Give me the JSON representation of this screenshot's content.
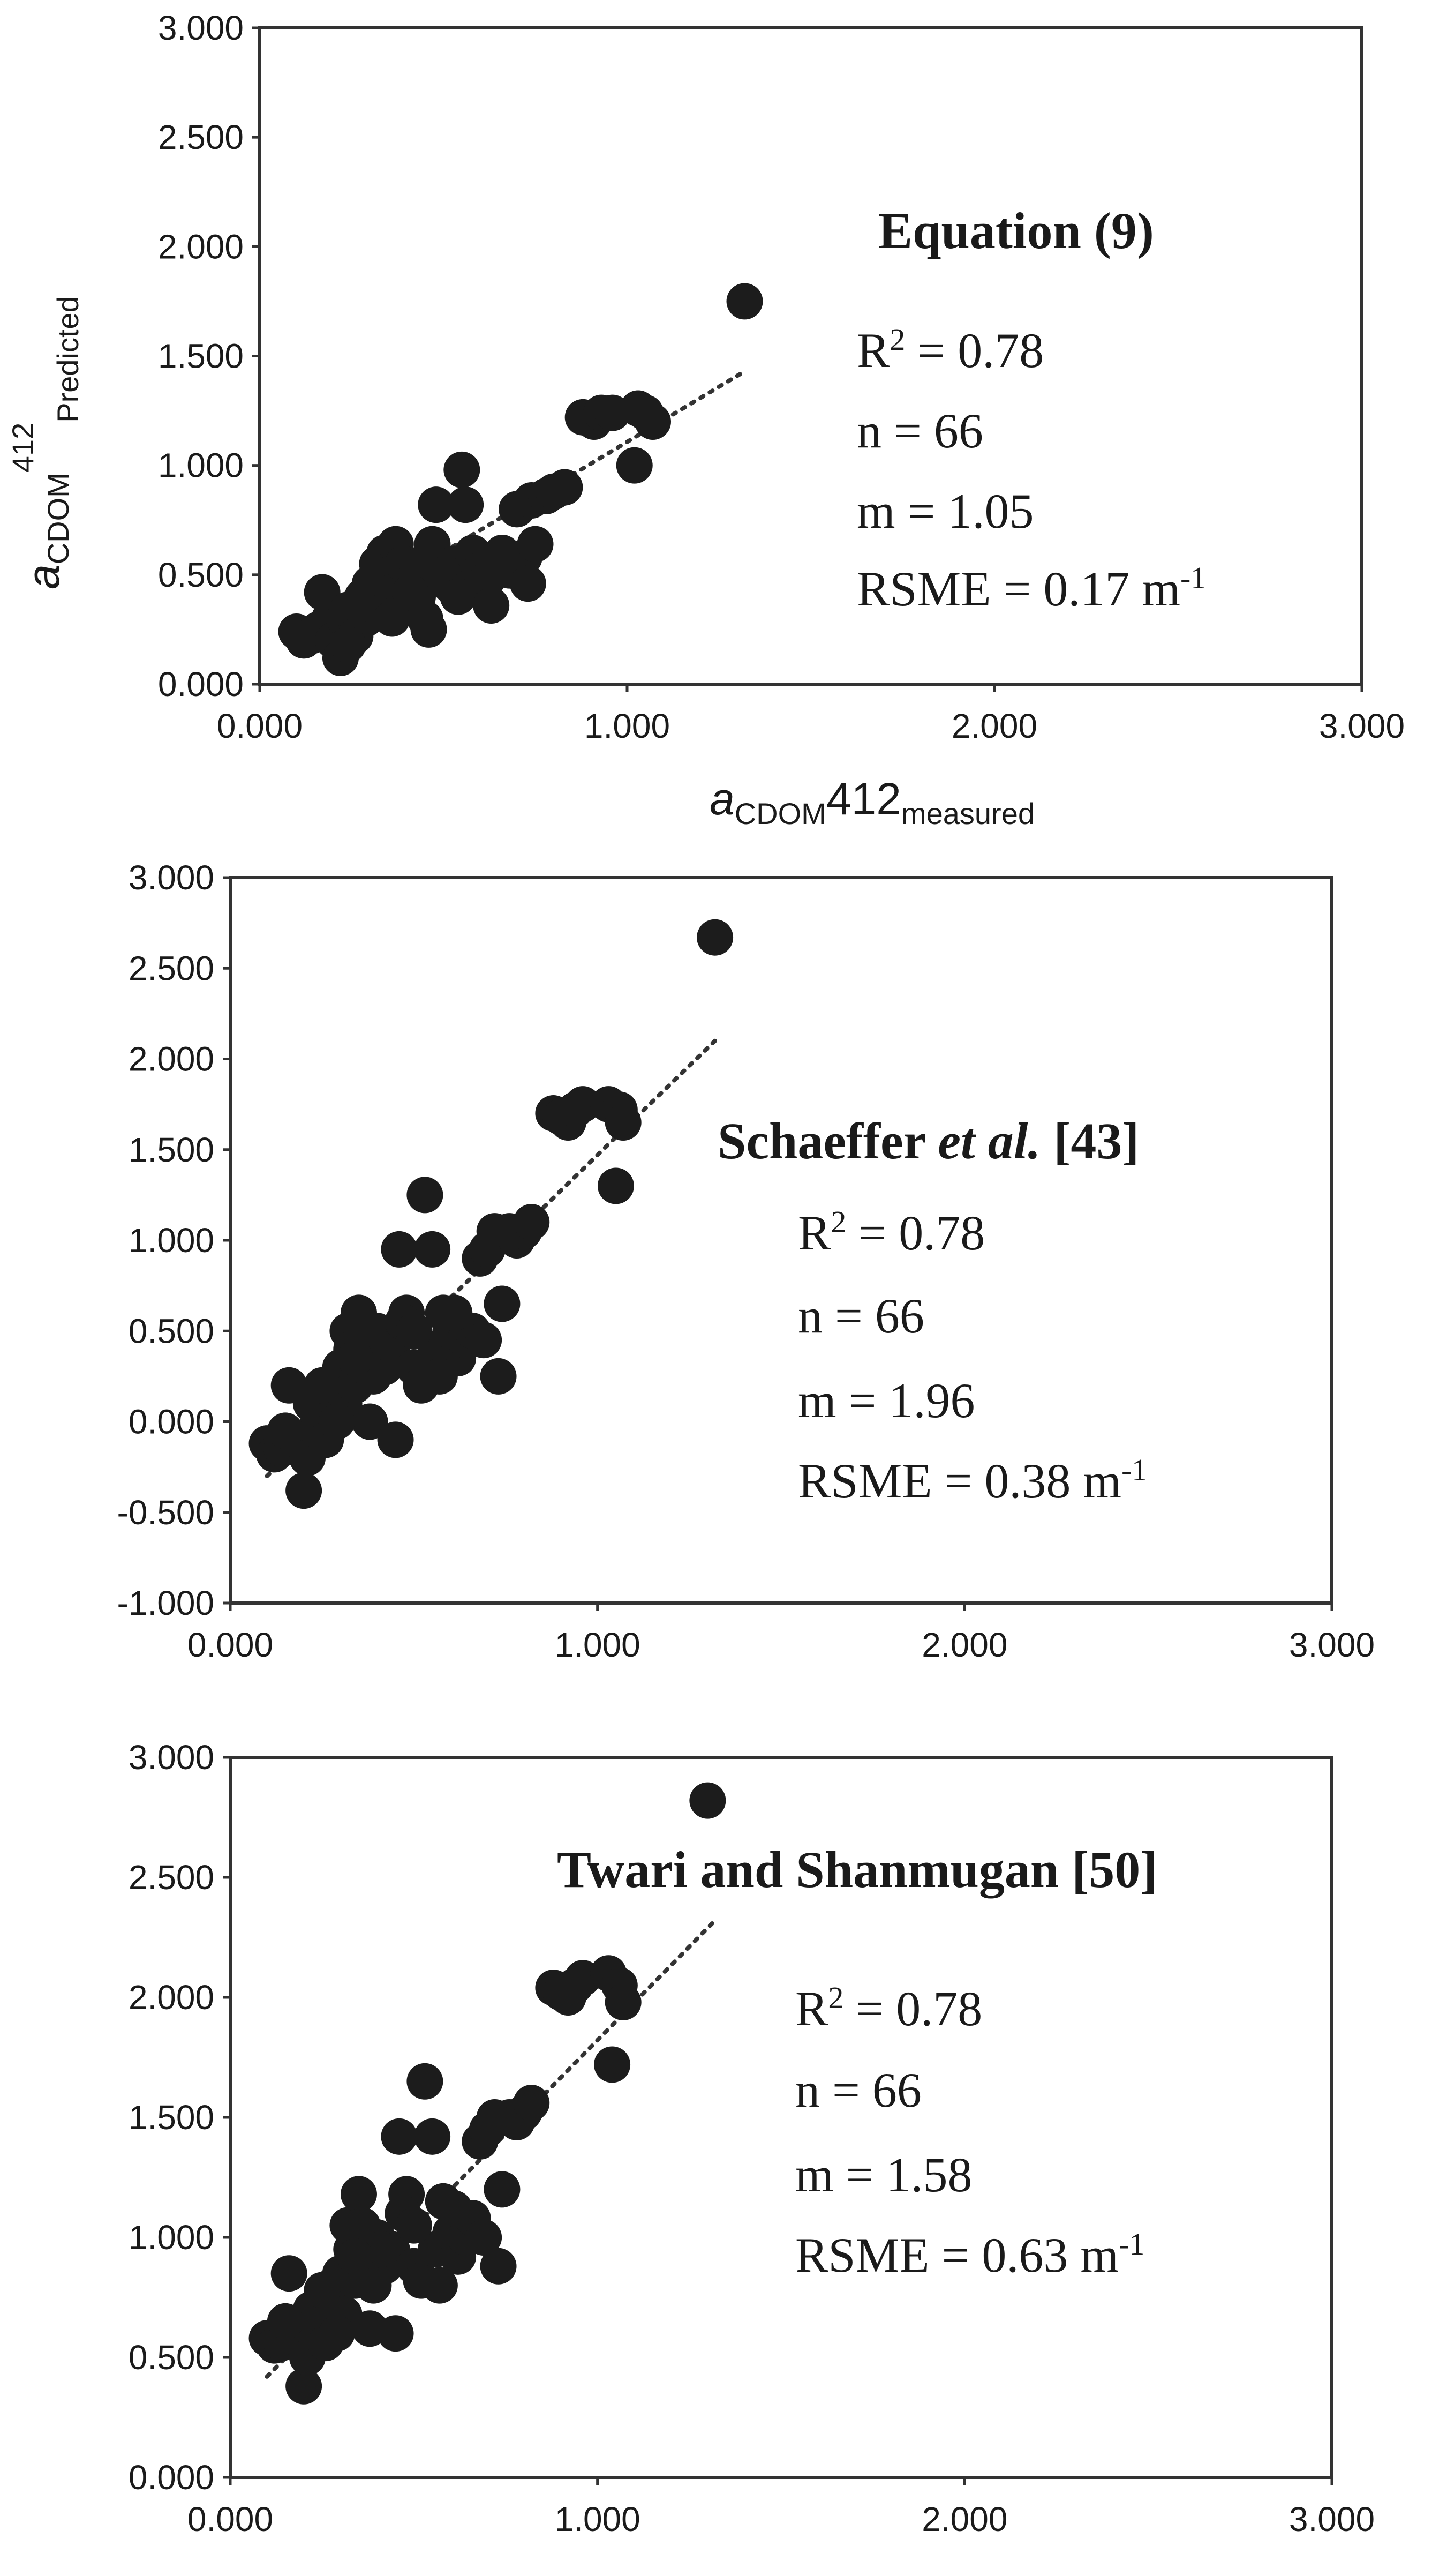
{
  "chart_data": [
    {
      "type": "scatter",
      "title": "Equation (9)",
      "xlabel": {
        "italic": "a",
        "sub1": "CDOM",
        "main": "412",
        "sub2": "measured"
      },
      "ylabel": {
        "italic": "a",
        "sub1": "CDOM",
        "sup": "412",
        "sub2": "Predicted"
      },
      "xlim": [
        0,
        3
      ],
      "ylim": [
        0,
        3
      ],
      "xticks": [
        "0.000",
        "1.000",
        "2.000",
        "3.000"
      ],
      "yticks": [
        "0.000",
        "0.500",
        "1.000",
        "1.500",
        "2.000",
        "2.500",
        "3.000"
      ],
      "trendline": {
        "x": [
          0.1,
          1.32
        ],
        "y": [
          0.2,
          1.43
        ],
        "style": "dotted"
      },
      "annotations": {
        "r2_prefix": "R",
        "r2_sup": "2",
        "r2_value": " = 0.78",
        "n": "n = 66",
        "m": "m = 1.05",
        "rsme": "RSME = 0.17 m",
        "rsme_sup": "-1"
      },
      "points": [
        [
          0.1,
          0.24
        ],
        [
          0.12,
          0.2
        ],
        [
          0.14,
          0.22
        ],
        [
          0.16,
          0.25
        ],
        [
          0.17,
          0.42
        ],
        [
          0.19,
          0.3
        ],
        [
          0.2,
          0.2
        ],
        [
          0.22,
          0.12
        ],
        [
          0.23,
          0.3
        ],
        [
          0.24,
          0.34
        ],
        [
          0.26,
          0.22
        ],
        [
          0.27,
          0.37
        ],
        [
          0.28,
          0.4
        ],
        [
          0.29,
          0.3
        ],
        [
          0.3,
          0.46
        ],
        [
          0.31,
          0.36
        ],
        [
          0.32,
          0.55
        ],
        [
          0.33,
          0.42
        ],
        [
          0.34,
          0.6
        ],
        [
          0.35,
          0.5
        ],
        [
          0.36,
          0.38
        ],
        [
          0.37,
          0.64
        ],
        [
          0.38,
          0.45
        ],
        [
          0.39,
          0.55
        ],
        [
          0.4,
          0.35
        ],
        [
          0.42,
          0.48
        ],
        [
          0.43,
          0.4
        ],
        [
          0.44,
          0.55
        ],
        [
          0.45,
          0.3
        ],
        [
          0.46,
          0.25
        ],
        [
          0.47,
          0.64
        ],
        [
          0.48,
          0.82
        ],
        [
          0.5,
          0.5
        ],
        [
          0.52,
          0.45
        ],
        [
          0.53,
          0.55
        ],
        [
          0.55,
          0.98
        ],
        [
          0.56,
          0.82
        ],
        [
          0.57,
          0.44
        ],
        [
          0.58,
          0.6
        ],
        [
          0.6,
          0.52
        ],
        [
          0.62,
          0.48
        ],
        [
          0.64,
          0.56
        ],
        [
          0.66,
          0.6
        ],
        [
          0.68,
          0.52
        ],
        [
          0.7,
          0.8
        ],
        [
          0.72,
          0.58
        ],
        [
          0.73,
          0.46
        ],
        [
          0.74,
          0.84
        ],
        [
          0.75,
          0.64
        ],
        [
          0.78,
          0.86
        ],
        [
          0.8,
          0.88
        ],
        [
          0.83,
          0.9
        ],
        [
          0.88,
          1.22
        ],
        [
          0.91,
          1.2
        ],
        [
          0.93,
          1.24
        ],
        [
          0.96,
          1.24
        ],
        [
          1.02,
          1.0
        ],
        [
          1.03,
          1.26
        ],
        [
          1.05,
          1.24
        ],
        [
          1.07,
          1.2
        ],
        [
          1.32,
          1.75
        ],
        [
          0.54,
          0.4
        ],
        [
          0.24,
          0.18
        ],
        [
          0.36,
          0.3
        ],
        [
          0.41,
          0.42
        ],
        [
          0.63,
          0.36
        ]
      ]
    },
    {
      "type": "scatter",
      "title_pre": "Schaeffer ",
      "title_it": "et al.",
      "title_post": " [43]",
      "xlim": [
        0,
        3
      ],
      "ylim": [
        -1,
        3
      ],
      "xticks": [
        "0.000",
        "1.000",
        "2.000",
        "3.000"
      ],
      "yticks": [
        "-1.000",
        "-0.500",
        "0.000",
        "0.500",
        "1.000",
        "1.500",
        "2.000",
        "2.500",
        "3.000"
      ],
      "trendline": {
        "x": [
          0.1,
          1.32
        ],
        "y": [
          -0.3,
          2.1
        ],
        "style": "dotted"
      },
      "annotations": {
        "r2_prefix": "R",
        "r2_sup": "2",
        "r2_value": " = 0.78",
        "n": "n = 66",
        "m": "m = 1.96",
        "rsme": "RSME  = 0.38 m",
        "rsme_sup": "-1"
      },
      "points": [
        [
          0.1,
          -0.12
        ],
        [
          0.12,
          -0.18
        ],
        [
          0.14,
          -0.15
        ],
        [
          0.16,
          0.2
        ],
        [
          0.18,
          -0.1
        ],
        [
          0.2,
          -0.38
        ],
        [
          0.21,
          -0.2
        ],
        [
          0.22,
          0.1
        ],
        [
          0.24,
          0.0
        ],
        [
          0.26,
          -0.1
        ],
        [
          0.28,
          0.2
        ],
        [
          0.3,
          0.3
        ],
        [
          0.31,
          0.1
        ],
        [
          0.32,
          0.5
        ],
        [
          0.33,
          0.4
        ],
        [
          0.34,
          0.2
        ],
        [
          0.35,
          0.6
        ],
        [
          0.36,
          0.45
        ],
        [
          0.37,
          0.3
        ],
        [
          0.38,
          0.0
        ],
        [
          0.4,
          0.5
        ],
        [
          0.42,
          0.3
        ],
        [
          0.44,
          0.4
        ],
        [
          0.45,
          -0.1
        ],
        [
          0.46,
          0.95
        ],
        [
          0.48,
          0.6
        ],
        [
          0.5,
          0.3
        ],
        [
          0.52,
          0.2
        ],
        [
          0.53,
          1.25
        ],
        [
          0.55,
          0.95
        ],
        [
          0.56,
          0.4
        ],
        [
          0.58,
          0.6
        ],
        [
          0.6,
          0.5
        ],
        [
          0.62,
          0.35
        ],
        [
          0.64,
          0.45
        ],
        [
          0.66,
          0.5
        ],
        [
          0.68,
          0.9
        ],
        [
          0.7,
          0.95
        ],
        [
          0.72,
          1.05
        ],
        [
          0.73,
          0.25
        ],
        [
          0.74,
          0.65
        ],
        [
          0.76,
          1.05
        ],
        [
          0.78,
          1.0
        ],
        [
          0.8,
          1.05
        ],
        [
          0.82,
          1.1
        ],
        [
          0.88,
          1.7
        ],
        [
          0.9,
          1.68
        ],
        [
          0.92,
          1.65
        ],
        [
          0.94,
          1.72
        ],
        [
          0.96,
          1.75
        ],
        [
          1.03,
          1.75
        ],
        [
          1.05,
          1.3
        ],
        [
          1.06,
          1.72
        ],
        [
          1.07,
          1.65
        ],
        [
          1.32,
          2.67
        ],
        [
          0.29,
          0.0
        ],
        [
          0.41,
          0.35
        ],
        [
          0.47,
          0.55
        ],
        [
          0.61,
          0.6
        ],
        [
          0.69,
          0.45
        ],
        [
          0.25,
          0.2
        ],
        [
          0.39,
          0.25
        ],
        [
          0.57,
          0.25
        ],
        [
          0.34,
          0.35
        ],
        [
          0.5,
          0.5
        ],
        [
          0.15,
          -0.05
        ]
      ]
    },
    {
      "type": "scatter",
      "title": "Twari and Shanmugan [50]",
      "xlim": [
        0,
        3
      ],
      "ylim": [
        0,
        3
      ],
      "xticks": [
        "0.000",
        "1.000",
        "2.000",
        "3.000"
      ],
      "yticks": [
        "0.000",
        "0.500",
        "1.000",
        "1.500",
        "2.000",
        "2.500",
        "3.000"
      ],
      "trendline": {
        "x": [
          0.1,
          1.32
        ],
        "y": [
          0.42,
          2.32
        ],
        "style": "dotted"
      },
      "annotations": {
        "r2_prefix": "R",
        "r2_sup": "2",
        "r2_value": " = 0.78",
        "n": "n = 66",
        "m": "m = 1.58",
        "rsme": "RSME = 0.63 m",
        "rsme_sup": "-1"
      },
      "points": [
        [
          0.1,
          0.58
        ],
        [
          0.12,
          0.55
        ],
        [
          0.14,
          0.56
        ],
        [
          0.16,
          0.85
        ],
        [
          0.18,
          0.58
        ],
        [
          0.2,
          0.38
        ],
        [
          0.21,
          0.5
        ],
        [
          0.22,
          0.7
        ],
        [
          0.24,
          0.62
        ],
        [
          0.26,
          0.56
        ],
        [
          0.28,
          0.8
        ],
        [
          0.3,
          0.85
        ],
        [
          0.31,
          0.68
        ],
        [
          0.32,
          1.05
        ],
        [
          0.33,
          0.95
        ],
        [
          0.34,
          0.82
        ],
        [
          0.35,
          1.18
        ],
        [
          0.36,
          1.05
        ],
        [
          0.37,
          0.88
        ],
        [
          0.38,
          0.62
        ],
        [
          0.4,
          1.0
        ],
        [
          0.42,
          0.88
        ],
        [
          0.44,
          0.95
        ],
        [
          0.45,
          0.6
        ],
        [
          0.46,
          1.42
        ],
        [
          0.48,
          1.18
        ],
        [
          0.5,
          0.88
        ],
        [
          0.52,
          0.82
        ],
        [
          0.53,
          1.65
        ],
        [
          0.55,
          1.42
        ],
        [
          0.56,
          0.95
        ],
        [
          0.58,
          1.15
        ],
        [
          0.6,
          1.02
        ],
        [
          0.62,
          0.92
        ],
        [
          0.64,
          1.0
        ],
        [
          0.66,
          1.08
        ],
        [
          0.68,
          1.4
        ],
        [
          0.7,
          1.45
        ],
        [
          0.72,
          1.5
        ],
        [
          0.73,
          0.88
        ],
        [
          0.74,
          1.2
        ],
        [
          0.76,
          1.5
        ],
        [
          0.78,
          1.48
        ],
        [
          0.8,
          1.52
        ],
        [
          0.82,
          1.56
        ],
        [
          0.88,
          2.04
        ],
        [
          0.9,
          2.02
        ],
        [
          0.92,
          2.0
        ],
        [
          0.94,
          2.05
        ],
        [
          0.96,
          2.08
        ],
        [
          1.03,
          2.1
        ],
        [
          1.04,
          1.72
        ],
        [
          1.06,
          2.05
        ],
        [
          1.07,
          1.98
        ],
        [
          1.3,
          2.82
        ],
        [
          0.29,
          0.6
        ],
        [
          0.41,
          0.95
        ],
        [
          0.47,
          1.1
        ],
        [
          0.61,
          1.12
        ],
        [
          0.69,
          1.0
        ],
        [
          0.25,
          0.78
        ],
        [
          0.39,
          0.8
        ],
        [
          0.57,
          0.8
        ],
        [
          0.34,
          0.92
        ],
        [
          0.5,
          1.05
        ],
        [
          0.15,
          0.65
        ]
      ]
    }
  ]
}
